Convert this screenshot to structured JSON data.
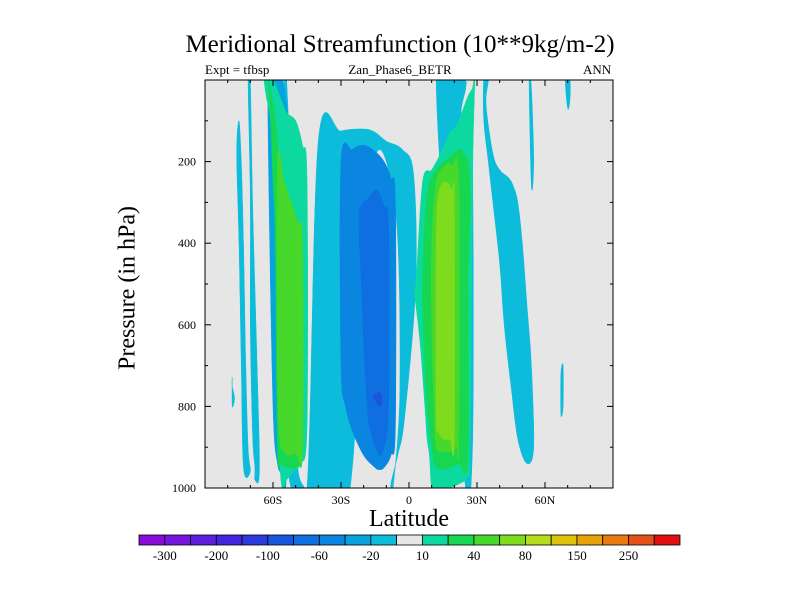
{
  "title": "Meridional Streamfunction (10**9kg/m-2)",
  "subtitle": {
    "left": "Expt = tfbsp",
    "center": "Zan_Phase6_BETR",
    "right": "ANN"
  },
  "chart_data": {
    "type": "contour",
    "xlabel": "Latitude",
    "ylabel": "Pressure (in hPa)",
    "xlim": [
      -90,
      90
    ],
    "ylim": [
      0,
      1000
    ],
    "y_inverted": true,
    "xticks": [
      -60,
      -30,
      0,
      30,
      60
    ],
    "xtick_labels": [
      "60S",
      "30S",
      "0",
      "30N",
      "60N"
    ],
    "yticks": [
      200,
      400,
      600,
      800,
      1000
    ],
    "ytick_labels": [
      "200",
      "400",
      "600",
      "800",
      "1000"
    ],
    "background_color": "#e6e6e6",
    "colorbar": {
      "levels": [
        -300,
        -250,
        -200,
        -150,
        -100,
        -80,
        -60,
        -40,
        -20,
        -10,
        10,
        20,
        40,
        60,
        80,
        100,
        150,
        200,
        250,
        300
      ],
      "label_values": [
        -300,
        -200,
        -100,
        -60,
        -20,
        10,
        40,
        80,
        150,
        250
      ],
      "colors": [
        "#8a0bd8",
        "#7416dd",
        "#5c1fe0",
        "#4326df",
        "#2a3adb",
        "#1a55dd",
        "#0f6fe0",
        "#0a86e0",
        "#08a2de",
        "#0dbcdb",
        "#e6e6e6",
        "#0cd9a0",
        "#17d650",
        "#46d92c",
        "#7fdb1e",
        "#b6dc1a",
        "#dcc20a",
        "#e8a20a",
        "#e87a0e",
        "#e3501a",
        "#e00f10"
      ]
    },
    "contours": [
      {
        "level": -10,
        "color": "#0dbcdb",
        "lat": [
          -78,
          -78,
          -77,
          -78,
          -78
        ],
        "p": [
          730,
          750,
          780,
          800,
          730
        ]
      },
      {
        "level": -10,
        "color": "#0dbcdb",
        "lat": [
          -76,
          -75,
          -74,
          -73,
          -70,
          -71,
          -72,
          -73,
          -74,
          -75,
          -76
        ],
        "p": [
          180,
          400,
          700,
          950,
          960,
          900,
          700,
          400,
          200,
          100,
          180
        ]
      },
      {
        "level": -10,
        "color": "#0dbcdb",
        "lat": [
          -71,
          -70,
          -70,
          -69,
          -68,
          -68,
          -66,
          -67,
          -69,
          -70,
          -71
        ],
        "p": [
          0,
          300,
          600,
          870,
          950,
          980,
          960,
          700,
          300,
          0,
          0
        ]
      },
      {
        "level": -10,
        "color": "#0dbcdb",
        "lat": [
          -55,
          -55,
          -54,
          -52,
          -45,
          -40,
          -30,
          -20,
          -15,
          -10,
          -3,
          2,
          3,
          -2,
          -5,
          -8,
          -7,
          -4,
          -6,
          -16,
          -26,
          -36,
          -46,
          -50,
          -52,
          -54,
          -55
        ],
        "p": [
          0,
          100,
          800,
          1000,
          1000,
          150,
          125,
          120,
          128,
          150,
          170,
          230,
          500,
          830,
          920,
          990,
          1000,
          750,
          320,
          215,
          1000,
          1000,
          1000,
          870,
          300,
          0,
          0
        ]
      },
      {
        "level": -10,
        "color": "#0dbcdb",
        "lat": [
          -32,
          -30,
          -26,
          -20,
          -16,
          -26,
          -30,
          -34,
          -36,
          -32
        ],
        "p": [
          160,
          130,
          125,
          130,
          215,
          1000,
          1000,
          300,
          180,
          160
        ]
      },
      {
        "level": -10,
        "color": "#0dbcdb",
        "lat": [
          12,
          24,
          25,
          23,
          26,
          28,
          28,
          24,
          12
        ],
        "p": [
          0,
          0,
          20,
          80,
          130,
          190,
          900,
          950,
          0
        ]
      },
      {
        "level": -10,
        "color": "#0dbcdb",
        "lat": [
          33,
          35,
          34,
          37,
          40,
          44,
          46,
          48,
          50,
          52,
          54,
          55,
          52,
          48,
          45,
          42,
          40,
          37,
          35,
          33,
          33
        ],
        "p": [
          0,
          0,
          60,
          180,
          220,
          240,
          260,
          300,
          400,
          550,
          700,
          900,
          940,
          880,
          750,
          600,
          450,
          300,
          200,
          100,
          0
        ]
      },
      {
        "level": -10,
        "color": "#0dbcdb",
        "lat": [
          53,
          54,
          55,
          54,
          53
        ],
        "p": [
          0,
          20,
          200,
          260,
          0
        ]
      },
      {
        "level": -10,
        "color": "#0dbcdb",
        "lat": [
          69,
          71,
          71,
          70,
          69
        ],
        "p": [
          0,
          0,
          50,
          70,
          0
        ]
      },
      {
        "level": -10,
        "color": "#0dbcdb",
        "lat": [
          67,
          68,
          68,
          67,
          67
        ],
        "p": [
          720,
          700,
          800,
          820,
          720
        ]
      },
      {
        "level": -20,
        "color": "#08a2de",
        "lat": [
          -62,
          -62,
          -60,
          -58,
          -56,
          -54,
          -53,
          -55,
          -57,
          -60,
          -62
        ],
        "p": [
          0,
          200,
          800,
          940,
          960,
          945,
          200,
          20,
          0,
          0,
          0
        ]
      },
      {
        "level": 10,
        "color": "#0cd9a0",
        "lat": [
          -63,
          -60,
          -57,
          -54,
          -50,
          -47,
          -45,
          -45,
          -48,
          -51,
          -54,
          -56,
          -57,
          -56,
          -57,
          -59,
          -61,
          -63,
          -64,
          -64,
          -63
        ],
        "p": [
          0,
          0,
          40,
          80,
          100,
          160,
          240,
          850,
          940,
          960,
          980,
          1000,
          900,
          650,
          400,
          250,
          100,
          40,
          0,
          0,
          0
        ]
      },
      {
        "level": 20,
        "color": "#17d650",
        "lat": [
          -62,
          -59,
          -56,
          -52,
          -50,
          -48,
          -47,
          -47,
          -49,
          -53,
          -56,
          -58,
          -59,
          -60,
          -61,
          -62
        ],
        "p": [
          0,
          100,
          250,
          300,
          330,
          370,
          450,
          900,
          945,
          950,
          940,
          900,
          400,
          250,
          100,
          0
        ]
      },
      {
        "level": 10,
        "color": "#0cd9a0",
        "lat": [
          3,
          6,
          10,
          14,
          18,
          20,
          22,
          24,
          26,
          28,
          29,
          28,
          27,
          26,
          22,
          17,
          12,
          10,
          9,
          8,
          7,
          5,
          3,
          2,
          3
        ],
        "p": [
          500,
          250,
          220,
          180,
          130,
          120,
          100,
          70,
          40,
          20,
          0,
          250,
          900,
          970,
          990,
          1000,
          1000,
          1000,
          920,
          880,
          800,
          650,
          550,
          500,
          500
        ]
      },
      {
        "level": 20,
        "color": "#17d650",
        "lat": [
          6,
          8,
          12,
          18,
          22,
          24,
          26,
          27,
          26,
          26,
          22,
          18,
          12,
          10,
          9,
          8,
          7,
          6
        ],
        "p": [
          500,
          280,
          220,
          190,
          170,
          180,
          200,
          300,
          500,
          930,
          940,
          950,
          950,
          900,
          850,
          800,
          700,
          500
        ]
      },
      {
        "level": 40,
        "color": "#46d92c",
        "lat": [
          10,
          12,
          16,
          19,
          22,
          22,
          21,
          19,
          16,
          12,
          11,
          10,
          10
        ],
        "p": [
          400,
          250,
          210,
          210,
          250,
          880,
          900,
          910,
          910,
          900,
          800,
          600,
          400
        ]
      }
    ],
    "shaded_regions": [
      {
        "level": -40,
        "color": "#0a86e0",
        "lat": [
          -30,
          -25,
          -20,
          -15,
          -11,
          -8,
          -6,
          -6,
          -8,
          -11,
          -13,
          -15,
          -20,
          -25,
          -28,
          -30,
          -30
        ],
        "p": [
          200,
          170,
          160,
          175,
          200,
          240,
          300,
          850,
          920,
          950,
          955,
          950,
          920,
          860,
          800,
          700,
          200
        ]
      },
      {
        "level": -60,
        "color": "#0f6fe0",
        "lat": [
          -22,
          -18,
          -14,
          -11,
          -9,
          -9,
          -11,
          -13,
          -14,
          -16,
          -18,
          -19,
          -20,
          -21,
          -22
        ],
        "p": [
          330,
          290,
          270,
          310,
          360,
          800,
          900,
          920,
          910,
          880,
          830,
          750,
          650,
          500,
          330
        ]
      },
      {
        "level": -80,
        "color": "#1a55dd",
        "lat": [
          -15,
          -13,
          -12,
          -12,
          -13,
          -15,
          -16,
          -15
        ],
        "p": [
          770,
          765,
          775,
          790,
          800,
          785,
          775,
          770
        ]
      },
      {
        "level": 40,
        "color": "#46d92c",
        "lat": [
          -58,
          -55,
          -52,
          -49,
          -47,
          -47,
          -50,
          -53,
          -55,
          -57,
          -58,
          -58
        ],
        "p": [
          200,
          250,
          300,
          350,
          400,
          900,
          915,
          920,
          910,
          880,
          700,
          200
        ]
      },
      {
        "level": 60,
        "color": "#7fdb1e",
        "lat": [
          13,
          16,
          19,
          20,
          20,
          18,
          15,
          13,
          12,
          12,
          13
        ],
        "p": [
          280,
          250,
          270,
          300,
          880,
          880,
          880,
          860,
          820,
          400,
          280
        ]
      }
    ]
  }
}
